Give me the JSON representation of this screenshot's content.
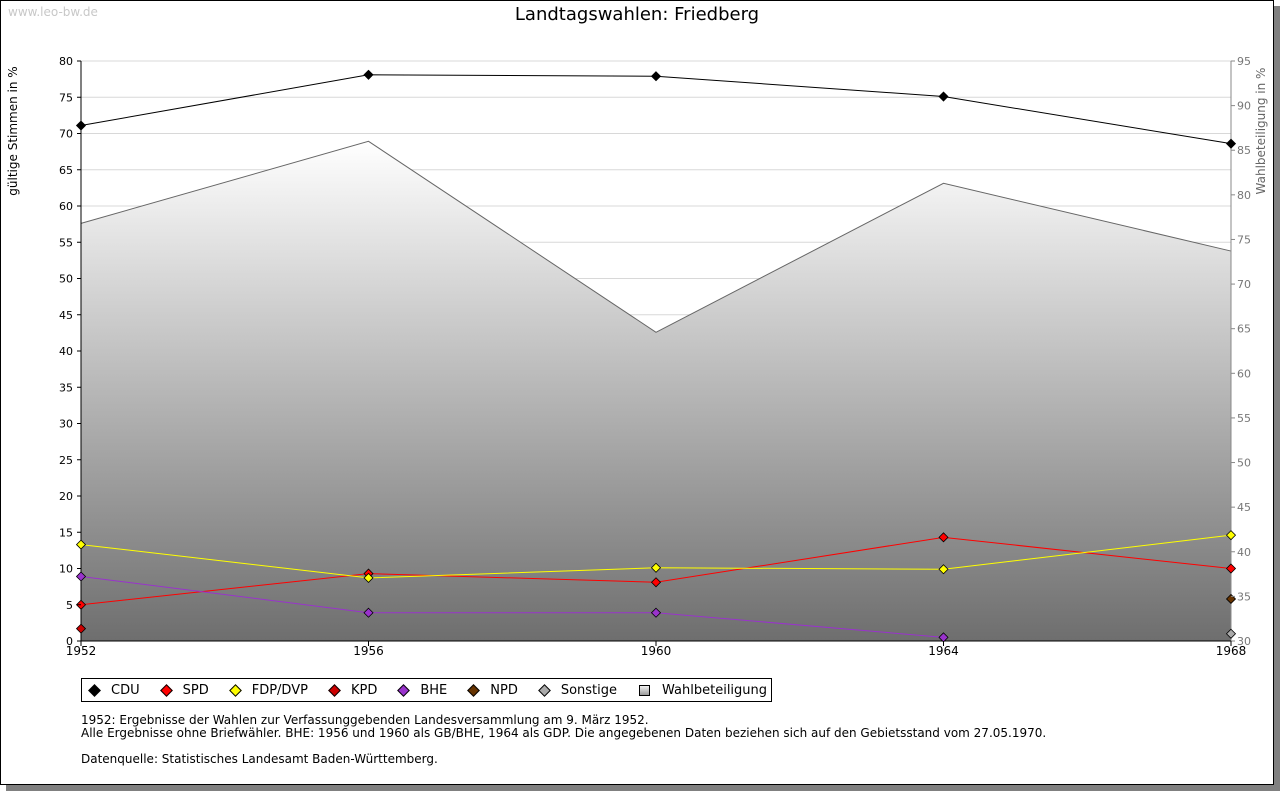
{
  "watermark": "www.leo-bw.de",
  "chart_data": {
    "type": "line",
    "title": "Landtagswahlen: Friedberg",
    "ylabel": "gültige Stimmen in %",
    "ylabel_right": "Wahlbeteiligung in %",
    "ylim": [
      0,
      80
    ],
    "ylim_right": [
      30,
      95
    ],
    "yticks": [
      0,
      5,
      10,
      15,
      20,
      25,
      30,
      35,
      40,
      45,
      50,
      55,
      60,
      65,
      70,
      75,
      80
    ],
    "yticks_right": [
      30,
      35,
      40,
      45,
      50,
      55,
      60,
      65,
      70,
      75,
      80,
      85,
      90,
      95
    ],
    "x": [
      "1952",
      "1956",
      "1960",
      "1964",
      "1968"
    ],
    "grid": true,
    "legend_position": "bottom-left",
    "series": [
      {
        "name": "CDU",
        "color": "#000000",
        "values": [
          71.1,
          78.1,
          77.9,
          75.1,
          68.6
        ]
      },
      {
        "name": "SPD",
        "color": "#ff0000",
        "values": [
          5.0,
          9.3,
          8.1,
          14.3,
          10.0
        ]
      },
      {
        "name": "FDP/DVP",
        "color": "#ffff00",
        "values": [
          13.3,
          8.7,
          10.1,
          9.9,
          14.6
        ]
      },
      {
        "name": "KPD",
        "color": "#cc0000",
        "values": [
          1.7,
          null,
          null,
          null,
          null
        ]
      },
      {
        "name": "BHE",
        "color": "#9933cc",
        "values": [
          8.9,
          3.9,
          3.9,
          0.5,
          null
        ]
      },
      {
        "name": "NPD",
        "color": "#663300",
        "values": [
          null,
          null,
          null,
          null,
          5.8
        ]
      },
      {
        "name": "Sonstige",
        "color": "#aaaaaa",
        "values": [
          null,
          null,
          null,
          null,
          1.0
        ]
      },
      {
        "name": "Wahlbeteiligung",
        "color": "#808080",
        "axis": "right",
        "type": "area",
        "values": [
          76.8,
          86.0,
          64.6,
          81.3,
          73.7
        ]
      }
    ]
  },
  "legend": [
    "CDU",
    "SPD",
    "FDP/DVP",
    "KPD",
    "BHE",
    "NPD",
    "Sonstige",
    "Wahlbeteiligung"
  ],
  "notes": {
    "line1": "1952: Ergebnisse der Wahlen zur Verfassunggebenden Landesversammlung am 9. März 1952.",
    "line2": "Alle Ergebnisse ohne Briefwähler. BHE: 1956 und 1960 als GB/BHE, 1964 als GDP. Die angegebenen Daten beziehen sich auf den Gebietsstand vom 27.05.1970.",
    "line3": "Datenquelle: Statistisches Landesamt Baden-Württemberg."
  }
}
